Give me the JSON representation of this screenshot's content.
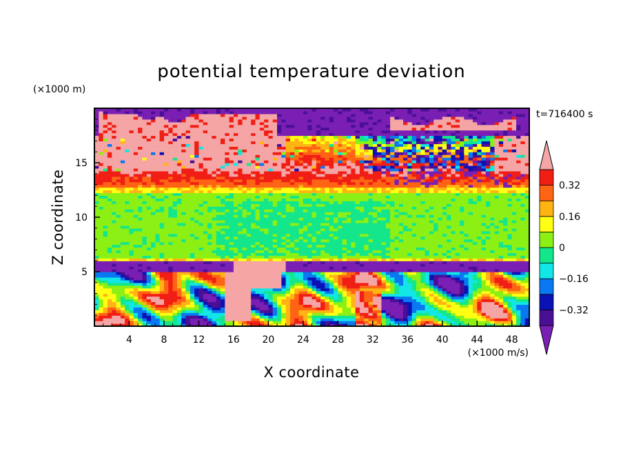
{
  "chart_data": {
    "type": "heatmap",
    "title": "potential temperature deviation",
    "xlabel": "X coordinate",
    "ylabel": "Z coordinate",
    "x_unit": "(×1000 m/s)",
    "y_unit": "(×1000 m)",
    "time_label": "t=716400 s",
    "xlim": [
      0,
      50
    ],
    "ylim": [
      0,
      20
    ],
    "x_ticks": [
      4,
      8,
      12,
      16,
      20,
      24,
      28,
      32,
      36,
      40,
      44,
      48
    ],
    "x_tick_labels": [
      "4",
      "8",
      "12",
      "16",
      "20",
      "24",
      "28",
      "32",
      "36",
      "40",
      "44",
      "48"
    ],
    "y_ticks": [
      5,
      10,
      15
    ],
    "y_tick_labels": [
      "5",
      "10",
      "15"
    ],
    "colorbar": {
      "levels": [
        -0.4,
        -0.32,
        -0.24,
        -0.16,
        -0.08,
        0,
        0.08,
        0.16,
        0.24,
        0.32,
        0.4
      ],
      "tick_values": [
        -0.32,
        -0.16,
        0,
        0.16,
        0.32
      ],
      "tick_labels": [
        "−0.32",
        "−0.16",
        "0",
        "0.16",
        "0.32"
      ],
      "colors": [
        "#7a1fb4",
        "#4b0f96",
        "#0a12b4",
        "#0a78f0",
        "#12e6e6",
        "#14e68c",
        "#8cf014",
        "#ffff14",
        "#ffb414",
        "#ff6414",
        "#f01e14",
        "#f5a5a5"
      ],
      "extend": "both"
    },
    "layers": [
      {
        "z": [
          17.5,
          20
        ],
        "dominant": "-0.4"
      },
      {
        "z": [
          14.5,
          17.5
        ],
        "dominant": "0.4"
      },
      {
        "z": [
          13,
          14.5
        ],
        "dominant": "0.3"
      },
      {
        "z": [
          6,
          13
        ],
        "dominant": "0"
      },
      {
        "z": [
          5,
          6
        ],
        "dominant": "-0.4"
      },
      {
        "z": [
          0,
          5
        ],
        "dominant": "mixed"
      }
    ]
  }
}
